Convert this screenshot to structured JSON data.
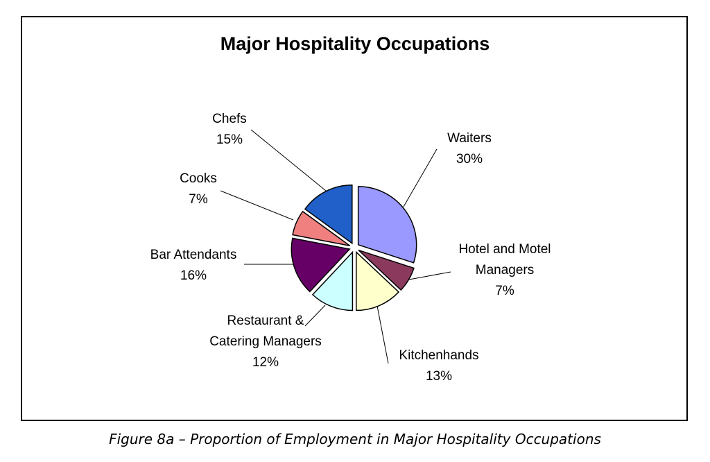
{
  "chart_data": {
    "type": "pie",
    "title": "Major Hospitality Occupations",
    "slices": [
      {
        "label": "Waiters",
        "value": 30,
        "value_label": "30%",
        "color": "#9999ff"
      },
      {
        "label": "Hotel and Motel Managers",
        "value": 7,
        "value_label": "7%",
        "color": "#8b3a5e"
      },
      {
        "label": "Kitchenhands",
        "value": 13,
        "value_label": "13%",
        "color": "#ffffcc"
      },
      {
        "label": "Restaurant & Catering Managers",
        "value": 12,
        "value_label": "12%",
        "color": "#ccffff"
      },
      {
        "label": "Bar Attendants",
        "value": 16,
        "value_label": "16%",
        "color": "#660066"
      },
      {
        "label": "Cooks",
        "value": 7,
        "value_label": "7%",
        "color": "#f08080"
      },
      {
        "label": "Chefs",
        "value": 15,
        "value_label": "15%",
        "color": "#2060c8"
      }
    ],
    "start_angle_deg": 0,
    "direction": "clockwise",
    "exploded": true
  },
  "caption": "Figure 8a – Proportion of Employment in Major Hospitality Occupations"
}
